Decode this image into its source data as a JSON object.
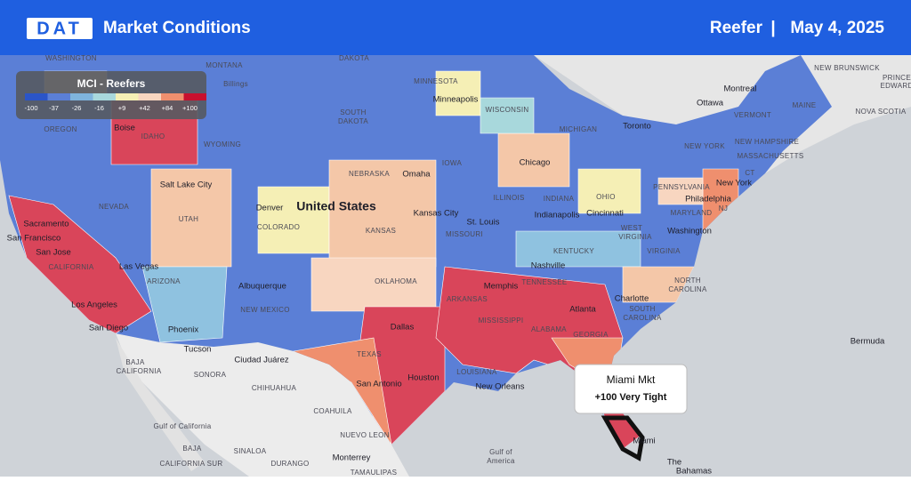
{
  "header": {
    "logo": "DAT",
    "title": "Market Conditions",
    "segment": "Reefer",
    "separator": "|",
    "date": "May 4, 2025"
  },
  "legend": {
    "title": "MCI - Reefers",
    "ticks": [
      "-100",
      "-37",
      "-26",
      "-16",
      "+9",
      "+42",
      "+84",
      "+100"
    ]
  },
  "tooltip": {
    "title": "Miami Mkt",
    "value": "+100 Very Tight"
  },
  "map": {
    "labels": [
      "WASHINGTON",
      "MONTANA",
      "DAKOTA",
      "MINNESOTA",
      "Billings",
      "SOUTH",
      "DAKOTA",
      "Minneapolis",
      "WISCONSIN",
      "OREGON",
      "Boise",
      "IDAHO",
      "WYOMING",
      "MICHIGAN",
      "Toronto",
      "Ottawa",
      "Montreal",
      "VERMONT",
      "MAINE",
      "NEW BRUNSWICK",
      "NOVA SCOTIA",
      "PRINCE",
      "EDWARD",
      "NEW YORK",
      "NEW HAMPSHIRE",
      "MASSACHUSETTS",
      "IOWA",
      "NEBRASKA",
      "Omaha",
      "Chicago",
      "CT",
      "Salt Lake City",
      "NEVADA",
      "UTAH",
      "Denver",
      "United States",
      "COLORADO",
      "ILLINOIS",
      "INDIANA",
      "OHIO",
      "PENNSYLVANIA",
      "New York",
      "Philadelphia",
      "Kansas City",
      "St. Louis",
      "Indianapolis",
      "Cincinnati",
      "MARYLAND",
      "NJ",
      "Sacramento",
      "San Francisco",
      "KANSAS",
      "MISSOURI",
      "WEST",
      "VIRGINIA",
      "Washington",
      "San Jose",
      "CALIFORNIA",
      "Las Vegas",
      "KENTUCKY",
      "VIRGINIA",
      "Nashville",
      "OKLAHOMA",
      "TENNESSEE",
      "NORTH",
      "CAROLINA",
      "Albuquerque",
      "ARIZONA",
      "Memphis",
      "ARKANSAS",
      "Charlotte",
      "Los Angeles",
      "NEW MEXICO",
      "Atlanta",
      "SOUTH",
      "CAROLINA",
      "Phoenix",
      "MISSISSIPPI",
      "ALABAMA",
      "Dallas",
      "San Diego",
      "GEORGIA",
      "Tucson",
      "Bermuda",
      "TEXAS",
      "Ciudad Juárez",
      "BAJA",
      "CALIFORNIA",
      "LOUISIANA",
      "SONORA",
      "Houston",
      "San Antonio",
      "New Orleans",
      "CHIHUAHUA",
      "COAHUILA",
      "Gulf of California",
      "NUEVO LEON",
      "BAJA",
      "CALIFORNIA SUR",
      "SINALOA",
      "DURANGO",
      "Monterrey",
      "Gulf of",
      "America",
      "TAMAULIPAS",
      "Miami",
      "The",
      "Bahamas"
    ]
  }
}
